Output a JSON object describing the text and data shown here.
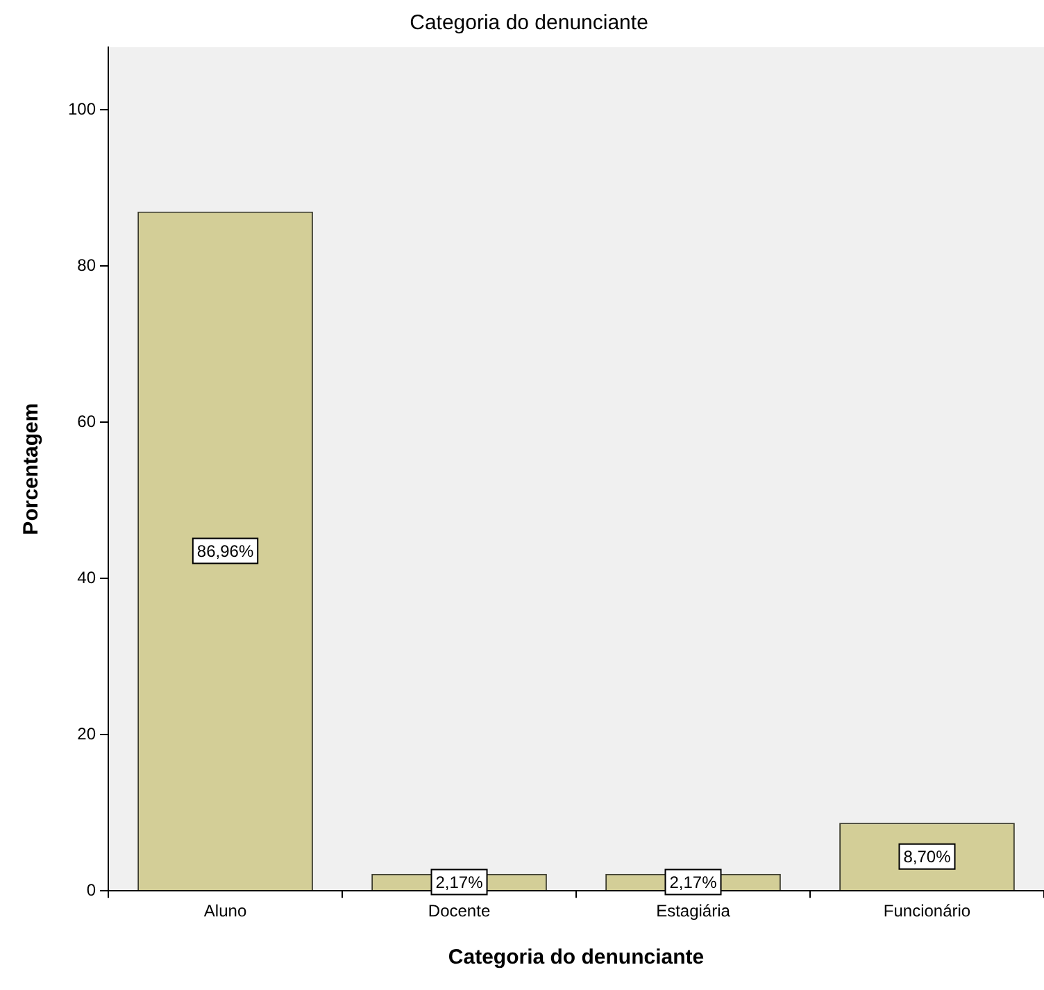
{
  "chart_data": {
    "type": "bar",
    "title": "Categoria do denunciante",
    "xlabel": "Categoria do denunciante",
    "ylabel": "Porcentagem",
    "categories": [
      "Aluno",
      "Docente",
      "Estagiária",
      "Funcionário"
    ],
    "values": [
      86.96,
      2.17,
      2.17,
      8.7
    ],
    "value_labels": [
      "86,96%",
      "2,17%",
      "2,17%",
      "8,70%"
    ],
    "color": "#d3ce97",
    "ylim": [
      0,
      108
    ],
    "yticks": [
      0,
      20,
      40,
      60,
      80,
      100
    ]
  }
}
